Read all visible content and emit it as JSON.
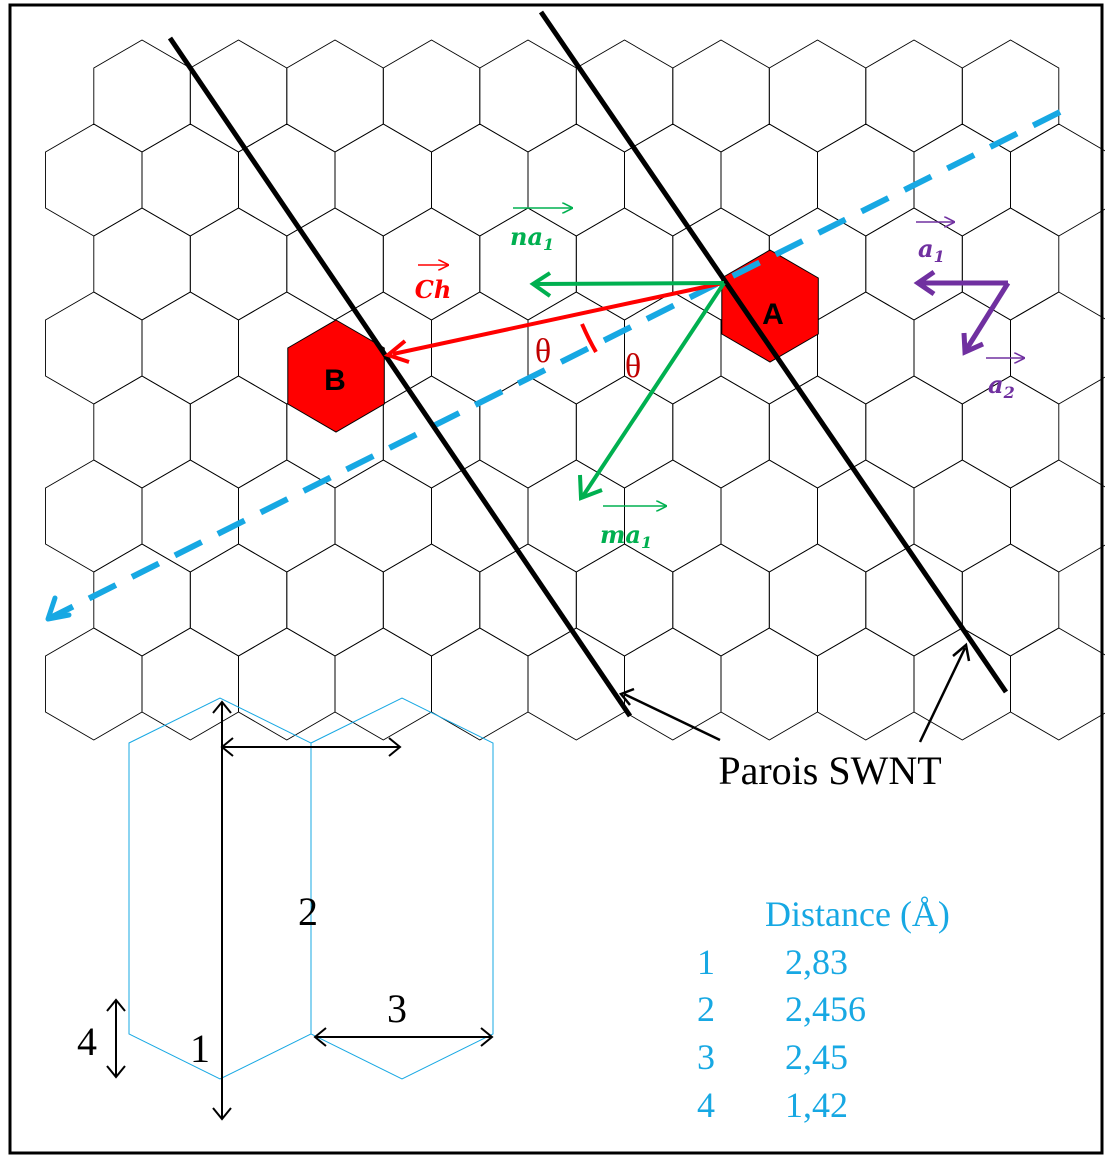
{
  "colors": {
    "frame": "#000000",
    "grid": "#000000",
    "highlight_hex": "#ff0000",
    "chiral_vector": "#ff0000",
    "lattice_vectors": "#00b050",
    "unit_vectors": "#7030a0",
    "tube_axis": "#17a8e3",
    "table_text": "#17a8e3",
    "small_hex": "#17a8e3"
  },
  "diagram": {
    "hex_a_label": "A",
    "hex_b_label": "B",
    "ch_label": "Ch",
    "na1_label": "na",
    "na1_sub": "1",
    "ma1_label": "ma",
    "ma1_sub": "1",
    "a1_label": "a",
    "a1_sub": "1",
    "a2_label": "a",
    "a2_sub": "2",
    "theta_1": "θ",
    "theta_2": "θ",
    "walls_label": "Parois SWNT"
  },
  "dimension_figure": {
    "dim_1": "1",
    "dim_2": "2",
    "dim_3": "3",
    "dim_4": "4"
  },
  "distance_table": {
    "header": "Distance (Å)",
    "rows": [
      {
        "id": "1",
        "value": "2,83"
      },
      {
        "id": "2",
        "value": "2,456"
      },
      {
        "id": "3",
        "value": "2,45"
      },
      {
        "id": "4",
        "value": "1,42"
      }
    ]
  }
}
